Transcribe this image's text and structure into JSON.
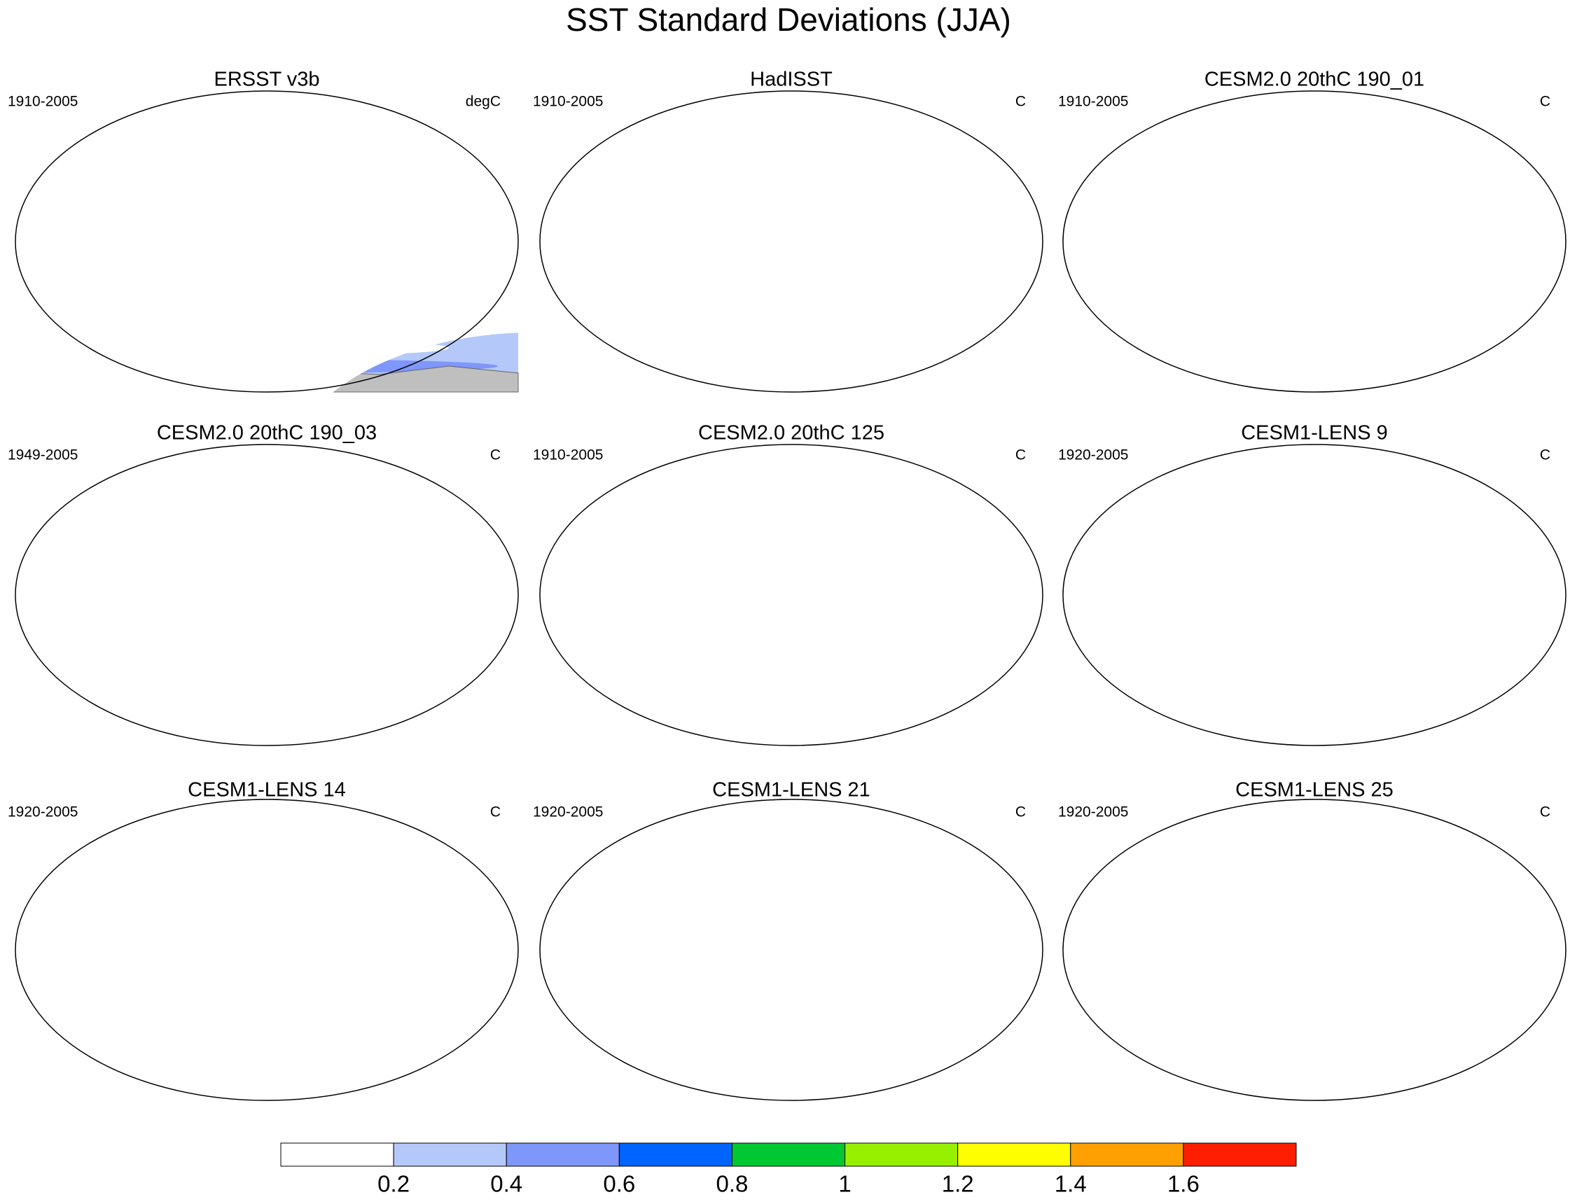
{
  "title": "SST Standard Deviations (JJA)",
  "panels": [
    {
      "title": "ERSST v3b",
      "period": "1910-2005",
      "units": "degC"
    },
    {
      "title": "HadISST",
      "period": "1910-2005",
      "units": "C"
    },
    {
      "title": "CESM2.0 20thC 190_01",
      "period": "1910-2005",
      "units": "C"
    },
    {
      "title": "CESM2.0 20thC 190_03",
      "period": "1949-2005",
      "units": "C"
    },
    {
      "title": "CESM2.0 20thC 125",
      "period": "1910-2005",
      "units": "C"
    },
    {
      "title": "CESM1-LENS 9",
      "period": "1920-2005",
      "units": "C"
    },
    {
      "title": "CESM1-LENS 14",
      "period": "1920-2005",
      "units": "C"
    },
    {
      "title": "CESM1-LENS 21",
      "period": "1920-2005",
      "units": "C"
    },
    {
      "title": "CESM1-LENS 25",
      "period": "1920-2005",
      "units": "C"
    }
  ],
  "colorbar": {
    "levels": [
      0.2,
      0.4,
      0.6,
      0.8,
      1,
      1.2,
      1.4,
      1.6
    ],
    "colors": [
      "#ffffff",
      "#b4c8fa",
      "#7f96fa",
      "#0064ff",
      "#00c832",
      "#96f000",
      "#ffff00",
      "#ffa000",
      "#ff1e00"
    ]
  }
}
